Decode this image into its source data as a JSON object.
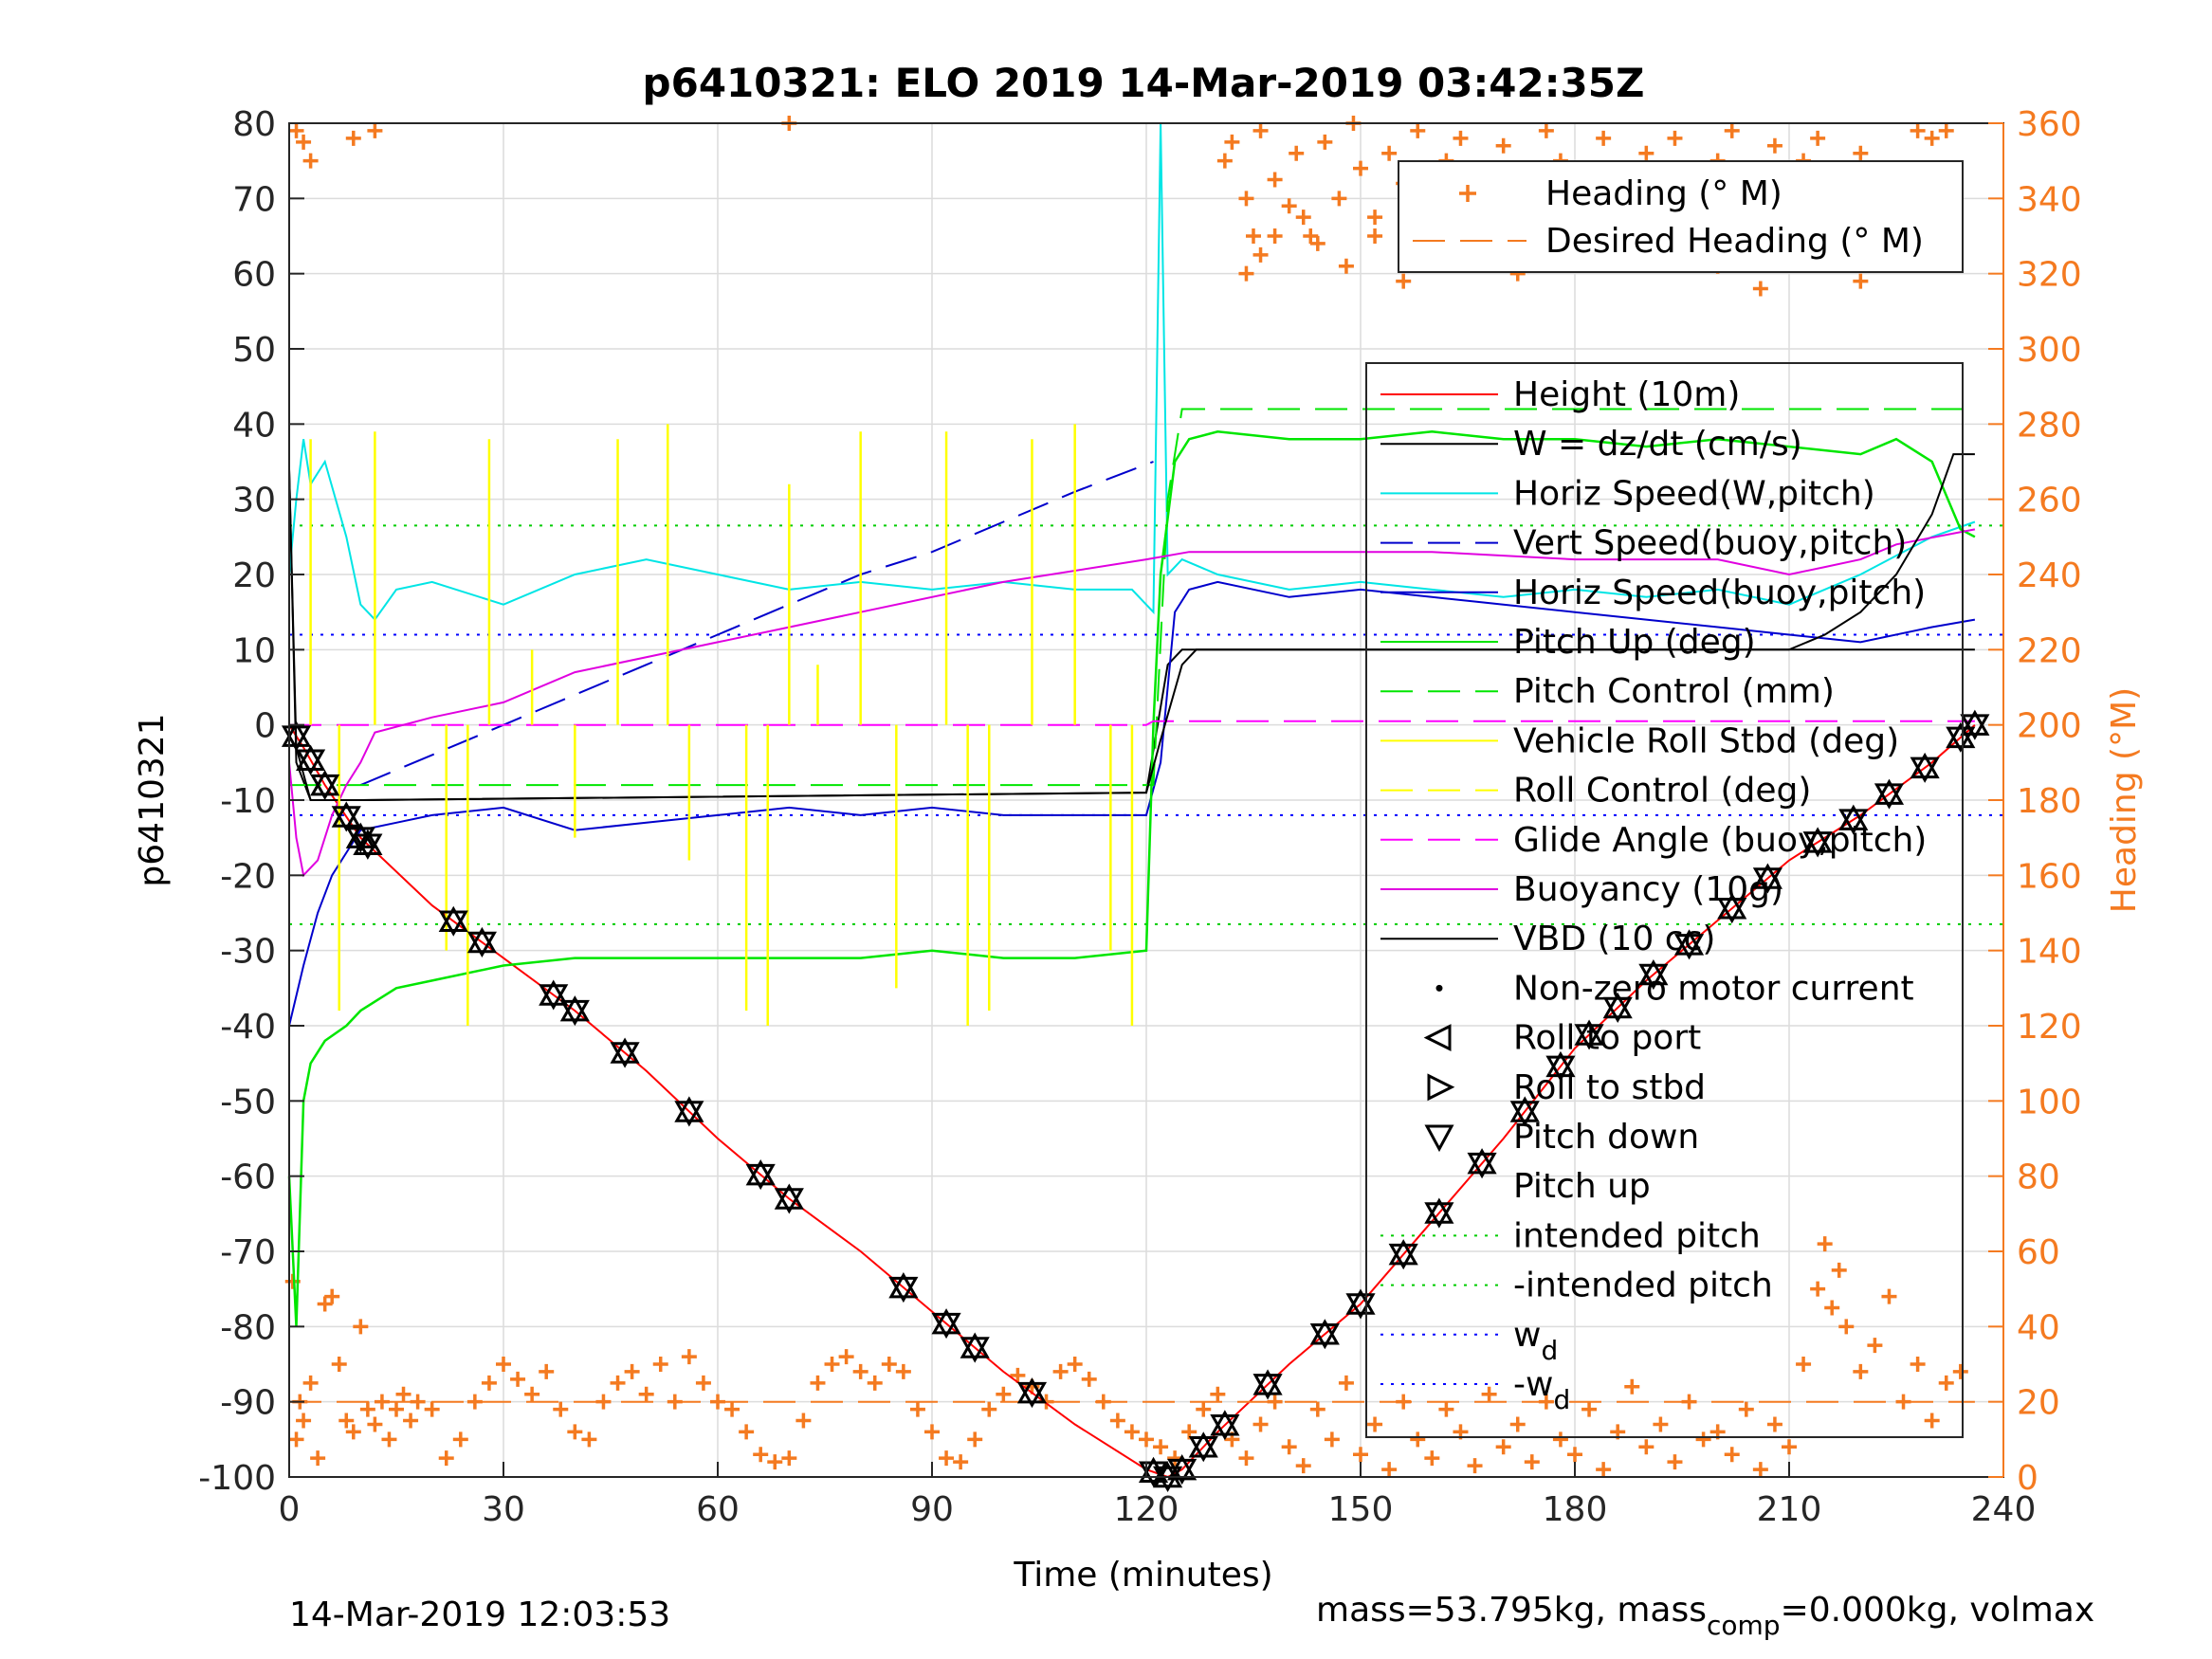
{
  "chart_data": {
    "type": "line",
    "title": "p6410321: ELO 2019 14-Mar-2019 03:42:35Z",
    "xlabel": "Time (minutes)",
    "ylabel_left": "p6410321",
    "ylabel_right": "Heading (°M)",
    "xlim": [
      0,
      240
    ],
    "ylim_left": [
      -100,
      80
    ],
    "ylim_right": [
      0,
      360
    ],
    "x_ticks": [
      "0",
      "30",
      "60",
      "90",
      "120",
      "150",
      "180",
      "210",
      "240"
    ],
    "y_ticks_left": [
      "80",
      "70",
      "60",
      "50",
      "40",
      "30",
      "20",
      "10",
      "0",
      "-10",
      "-20",
      "-30",
      "-40",
      "-50",
      "-60",
      "-70",
      "-80",
      "-90",
      "-100"
    ],
    "y_ticks_right": [
      "360",
      "340",
      "320",
      "300",
      "280",
      "260",
      "240",
      "220",
      "200",
      "180",
      "160",
      "140",
      "120",
      "100",
      "80",
      "60",
      "40",
      "20",
      "0"
    ],
    "grid": true,
    "colors": {
      "heading": "#f47a20",
      "height": "#ff0000",
      "w": "#000000",
      "horiz_w": "#00e5e5",
      "vert_buoy": "#0000cc",
      "horiz_buoy": "#0000cc",
      "pitch": "#00e600",
      "roll": "#ffff00",
      "glide": "#ff00ff",
      "buoyancy": "#e000e0",
      "vbd": "#000000",
      "intended": "#00cc00",
      "wd": "#0000ff"
    },
    "footer_left": "14-Mar-2019 12:03:53",
    "footer_right": {
      "t1": "mass=53.795kg, mass",
      "sub": "comp",
      "t2": "=0.000kg, volmax"
    },
    "heading_legend": [
      {
        "label": "Heading (° M)",
        "style": "plus"
      },
      {
        "label": "Desired Heading (° M)",
        "style": "dash"
      }
    ],
    "legend": [
      {
        "label": "Height (10m)",
        "style": "solid",
        "color": "#ff0000"
      },
      {
        "label": "W = dz/dt (cm/s)",
        "style": "solid",
        "color": "#000000"
      },
      {
        "label": "Horiz Speed(W,pitch)",
        "style": "solid",
        "color": "#00e5e5"
      },
      {
        "label": "Vert Speed(buoy,pitch)",
        "style": "dash",
        "color": "#0000cc"
      },
      {
        "label": "Horiz Speed(buoy,pitch)",
        "style": "solid",
        "color": "#0000cc"
      },
      {
        "label": "Pitch Up (deg)",
        "style": "solid",
        "color": "#00e600"
      },
      {
        "label": "Pitch Control (mm)",
        "style": "dash",
        "color": "#00e600"
      },
      {
        "label": "Vehicle Roll Stbd (deg)",
        "style": "solid",
        "color": "#ffff00"
      },
      {
        "label": "Roll Control (deg)",
        "style": "dash",
        "color": "#ffff00"
      },
      {
        "label": "Glide Angle (buoy,pitch)",
        "style": "dash",
        "color": "#ff00ff"
      },
      {
        "label": "Buoyancy (10g)",
        "style": "solid",
        "color": "#e000e0"
      },
      {
        "label": "VBD (10 cc)",
        "style": "solid",
        "color": "#000000"
      },
      {
        "label": "Non-zero motor current",
        "style": "dot",
        "color": "#000000"
      },
      {
        "label": "Roll to port",
        "style": "tri-left",
        "color": "#000000"
      },
      {
        "label": "Roll to stbd",
        "style": "tri-right",
        "color": "#000000"
      },
      {
        "label": "Pitch down",
        "style": "tri-down",
        "color": "#000000"
      },
      {
        "label": "Pitch up",
        "style": "none",
        "color": "#000000"
      },
      {
        "label": "intended pitch",
        "style": "dotted",
        "color": "#00cc00"
      },
      {
        "label": "-intended pitch",
        "style": "dotted",
        "color": "#00cc00"
      },
      {
        "label": "w",
        "sub": "d",
        "style": "dotted",
        "color": "#0000ff"
      },
      {
        "label": "-w",
        "sub": "d",
        "style": "dotted",
        "color": "#0000ff"
      }
    ],
    "series": [
      {
        "name": "Height (10m)",
        "axis": "left",
        "x": [
          0,
          2,
          5,
          10,
          20,
          30,
          40,
          50,
          60,
          70,
          80,
          90,
          100,
          110,
          120,
          123,
          125,
          130,
          140,
          150,
          160,
          170,
          180,
          190,
          200,
          210,
          220,
          230,
          236
        ],
        "y": [
          0,
          -3,
          -8,
          -15,
          -24,
          -31,
          -38,
          -46,
          -55,
          -63,
          -70,
          -78,
          -86,
          -93,
          -99,
          -100,
          -99,
          -94,
          -85,
          -77,
          -66,
          -55,
          -43,
          -34,
          -26,
          -18,
          -12,
          -5,
          0
        ]
      },
      {
        "name": "W = dz/dt (cm/s)",
        "axis": "left",
        "x": [
          0,
          1,
          3,
          10,
          120,
          123,
          125,
          130,
          236
        ],
        "y": [
          34,
          -5,
          -10,
          -10,
          -9,
          8,
          10,
          10,
          10
        ]
      },
      {
        "name": "Horiz Speed(W,pitch)",
        "axis": "left",
        "x": [
          0,
          1,
          2,
          3,
          5,
          8,
          10,
          12,
          15,
          20,
          30,
          40,
          50,
          60,
          70,
          80,
          90,
          100,
          110,
          118,
          121,
          122,
          123,
          125,
          130,
          140,
          150,
          160,
          170,
          180,
          190,
          200,
          210,
          220,
          230,
          236
        ],
        "y": [
          20,
          30,
          38,
          32,
          35,
          25,
          16,
          14,
          18,
          19,
          16,
          20,
          22,
          20,
          18,
          19,
          18,
          19,
          18,
          18,
          15,
          80,
          20,
          22,
          20,
          18,
          19,
          18,
          17,
          18,
          17,
          18,
          16,
          20,
          25,
          27
        ]
      },
      {
        "name": "Vert Speed(buoy,pitch)",
        "axis": "left",
        "x": [
          10,
          20,
          30,
          40,
          50,
          60,
          70,
          80,
          90,
          100,
          110,
          121
        ],
        "y": [
          -8,
          -4,
          0,
          4,
          8,
          12,
          16,
          20,
          23,
          27,
          31,
          35
        ]
      },
      {
        "name": "Horiz Speed(buoy,pitch)",
        "axis": "left",
        "x": [
          0,
          2,
          4,
          6,
          8,
          10,
          15,
          20,
          30,
          40,
          50,
          60,
          70,
          80,
          90,
          100,
          110,
          120,
          122,
          124,
          126,
          130,
          140,
          150,
          160,
          170,
          180,
          190,
          200,
          210,
          220,
          230,
          236
        ],
        "y": [
          -40,
          -32,
          -25,
          -20,
          -17,
          -14,
          -13,
          -12,
          -11,
          -14,
          -13,
          -12,
          -11,
          -12,
          -11,
          -12,
          -12,
          -12,
          -5,
          15,
          18,
          19,
          17,
          18,
          17,
          16,
          15,
          14,
          13,
          12,
          11,
          13,
          14
        ]
      },
      {
        "name": "Pitch Up (deg)",
        "axis": "left",
        "x": [
          0,
          1,
          2,
          3,
          5,
          8,
          10,
          15,
          20,
          30,
          40,
          50,
          60,
          70,
          80,
          90,
          100,
          110,
          120,
          121,
          122,
          124,
          126,
          130,
          140,
          150,
          160,
          170,
          180,
          190,
          200,
          210,
          220,
          225,
          230,
          234,
          236
        ],
        "y": [
          -60,
          -80,
          -50,
          -45,
          -42,
          -40,
          -38,
          -35,
          -34,
          -32,
          -31,
          -31,
          -31,
          -31,
          -31,
          -30,
          -31,
          -31,
          -30,
          0,
          20,
          35,
          38,
          39,
          38,
          38,
          39,
          38,
          38,
          37,
          38,
          37,
          36,
          38,
          35,
          26,
          25
        ]
      },
      {
        "name": "Pitch Control (mm)",
        "axis": "left",
        "x": [
          0,
          10,
          20,
          121,
          123,
          125,
          236
        ],
        "y": [
          -8,
          -8,
          -8,
          -8,
          30,
          42,
          42
        ]
      },
      {
        "name": "Glide Angle (buoy,pitch)",
        "axis": "left",
        "x": [
          0,
          120,
          121,
          236
        ],
        "y": [
          0,
          0,
          0.5,
          0.5
        ]
      },
      {
        "name": "Buoyancy (10g)",
        "axis": "left",
        "x": [
          0,
          1,
          2,
          4,
          6,
          8,
          10,
          12,
          20,
          30,
          40,
          60,
          80,
          100,
          120,
          126,
          140,
          160,
          180,
          200,
          210,
          215,
          220,
          225,
          236
        ],
        "y": [
          -5,
          -15,
          -20,
          -18,
          -12,
          -8,
          -5,
          -1,
          1,
          3,
          7,
          11,
          15,
          19,
          22,
          23,
          23,
          23,
          22,
          22,
          20,
          21,
          22,
          24,
          26
        ]
      },
      {
        "name": "VBD (10 cc)",
        "axis": "left",
        "x": [
          0,
          1,
          3,
          10,
          120,
          122,
          125,
          127,
          130,
          210,
          215,
          220,
          225,
          230,
          233,
          236
        ],
        "y": [
          34,
          -3,
          -10,
          -10,
          -9,
          -2,
          8,
          10,
          10,
          10,
          12,
          15,
          20,
          28,
          36,
          36
        ]
      },
      {
        "name": "Desired Heading (° M)",
        "axis": "right",
        "x": [
          0,
          236
        ],
        "y": [
          20,
          20
        ]
      }
    ],
    "reference_lines": [
      {
        "name": "intended pitch",
        "y": 26.5
      },
      {
        "name": "-intended pitch",
        "y": -26.5
      },
      {
        "name": "w_d",
        "y": 12
      },
      {
        "name": "-w_d",
        "y": -12
      }
    ],
    "roll_spikes": {
      "x": [
        3,
        7,
        12,
        22,
        25,
        28,
        34,
        40,
        46,
        53,
        56,
        64,
        67,
        70,
        74,
        80,
        85,
        92,
        95,
        98,
        104,
        110,
        115,
        118
      ],
      "y": [
        38,
        -38,
        39,
        -30,
        -40,
        38,
        10,
        -15,
        38,
        40,
        -18,
        -38,
        -40,
        32,
        8,
        39,
        -35,
        39,
        -40,
        -38,
        38,
        40,
        -30,
        -40
      ]
    },
    "markers": {
      "x": [
        1,
        3,
        5,
        8,
        10,
        11,
        23,
        27,
        37,
        40,
        47,
        56,
        66,
        70,
        86,
        92,
        96,
        104,
        121,
        123,
        125,
        128,
        131,
        137,
        145,
        150,
        156,
        161,
        167,
        173,
        178,
        182,
        186,
        191,
        196,
        202,
        207,
        214,
        219,
        224,
        229,
        234,
        236
      ]
    },
    "heading_points": {
      "x": [
        0.5,
        1,
        1.5,
        2,
        3,
        4,
        5,
        6,
        7,
        8,
        9,
        10,
        11,
        12,
        13,
        14,
        15,
        16,
        17,
        18,
        20,
        22,
        24,
        26,
        28,
        30,
        32,
        34,
        36,
        38,
        40,
        42,
        44,
        46,
        48,
        50,
        52,
        54,
        56,
        58,
        60,
        62,
        64,
        66,
        68,
        70,
        72,
        74,
        76,
        78,
        80,
        82,
        84,
        86,
        88,
        90,
        92,
        94,
        96,
        98,
        100,
        102,
        104,
        106,
        108,
        110,
        112,
        114,
        116,
        118,
        120,
        122,
        124,
        126,
        128,
        130,
        132,
        134,
        136,
        138,
        140,
        142,
        144,
        146,
        148,
        150,
        152,
        154,
        156,
        158,
        160,
        162,
        164,
        166,
        168,
        170,
        172,
        174,
        176,
        178,
        180,
        182,
        184,
        186,
        188,
        190,
        192,
        194,
        196,
        198,
        200,
        202,
        204,
        206,
        208,
        210,
        212,
        214,
        215,
        216,
        217,
        218,
        220,
        222,
        224,
        226,
        228,
        230,
        232,
        234,
        1,
        2,
        3,
        9,
        12,
        70,
        131,
        132,
        134,
        135,
        136,
        138,
        140,
        141,
        143,
        145,
        147,
        149,
        150,
        152,
        154,
        156,
        158,
        160,
        162,
        164,
        166,
        168,
        170,
        172,
        174,
        176,
        178,
        180,
        182,
        184,
        186,
        188,
        190,
        192,
        194,
        196,
        198,
        200,
        202,
        204,
        206,
        208,
        210,
        212,
        214,
        216,
        218,
        220,
        222,
        224,
        226,
        228,
        230,
        232,
        134,
        136,
        138,
        142,
        144,
        148,
        152,
        156,
        160,
        166,
        172,
        176,
        184,
        192,
        200,
        206,
        214,
        220
      ],
      "y": [
        52,
        10,
        20,
        15,
        25,
        5,
        46,
        48,
        30,
        15,
        12,
        40,
        18,
        14,
        20,
        10,
        18,
        22,
        15,
        20,
        18,
        5,
        10,
        20,
        25,
        30,
        26,
        22,
        28,
        18,
        12,
        10,
        20,
        25,
        28,
        22,
        30,
        20,
        32,
        25,
        20,
        18,
        12,
        6,
        4,
        5,
        15,
        25,
        30,
        32,
        28,
        25,
        30,
        28,
        18,
        12,
        5,
        4,
        10,
        18,
        22,
        27,
        24,
        20,
        28,
        30,
        26,
        20,
        15,
        12,
        10,
        8,
        5,
        12,
        18,
        22,
        10,
        5,
        14,
        20,
        8,
        3,
        18,
        10,
        25,
        6,
        14,
        2,
        20,
        10,
        5,
        18,
        12,
        3,
        22,
        8,
        14,
        4,
        20,
        10,
        6,
        18,
        2,
        12,
        24,
        8,
        14,
        4,
        20,
        10,
        12,
        6,
        18,
        2,
        14,
        8,
        30,
        50,
        62,
        45,
        55,
        40,
        28,
        35,
        48,
        20,
        30,
        15,
        25,
        28,
        358,
        355,
        350,
        356,
        358,
        360,
        350,
        355,
        340,
        330,
        358,
        345,
        338,
        352,
        330,
        355,
        340,
        360,
        348,
        335,
        352,
        344,
        358,
        338,
        350,
        356,
        342,
        330,
        354,
        346,
        338,
        358,
        350,
        340,
        332,
        356,
        348,
        342,
        352,
        338,
        356,
        344,
        330,
        350,
        358,
        346,
        338,
        354,
        342,
        350,
        356,
        336,
        348,
        352,
        344,
        340,
        330,
        358,
        356,
        358,
        320,
        325,
        330,
        335,
        328,
        322,
        330,
        318,
        326,
        332,
        320,
        328,
        325,
        330,
        322,
        316,
        330,
        318
      ]
    }
  }
}
